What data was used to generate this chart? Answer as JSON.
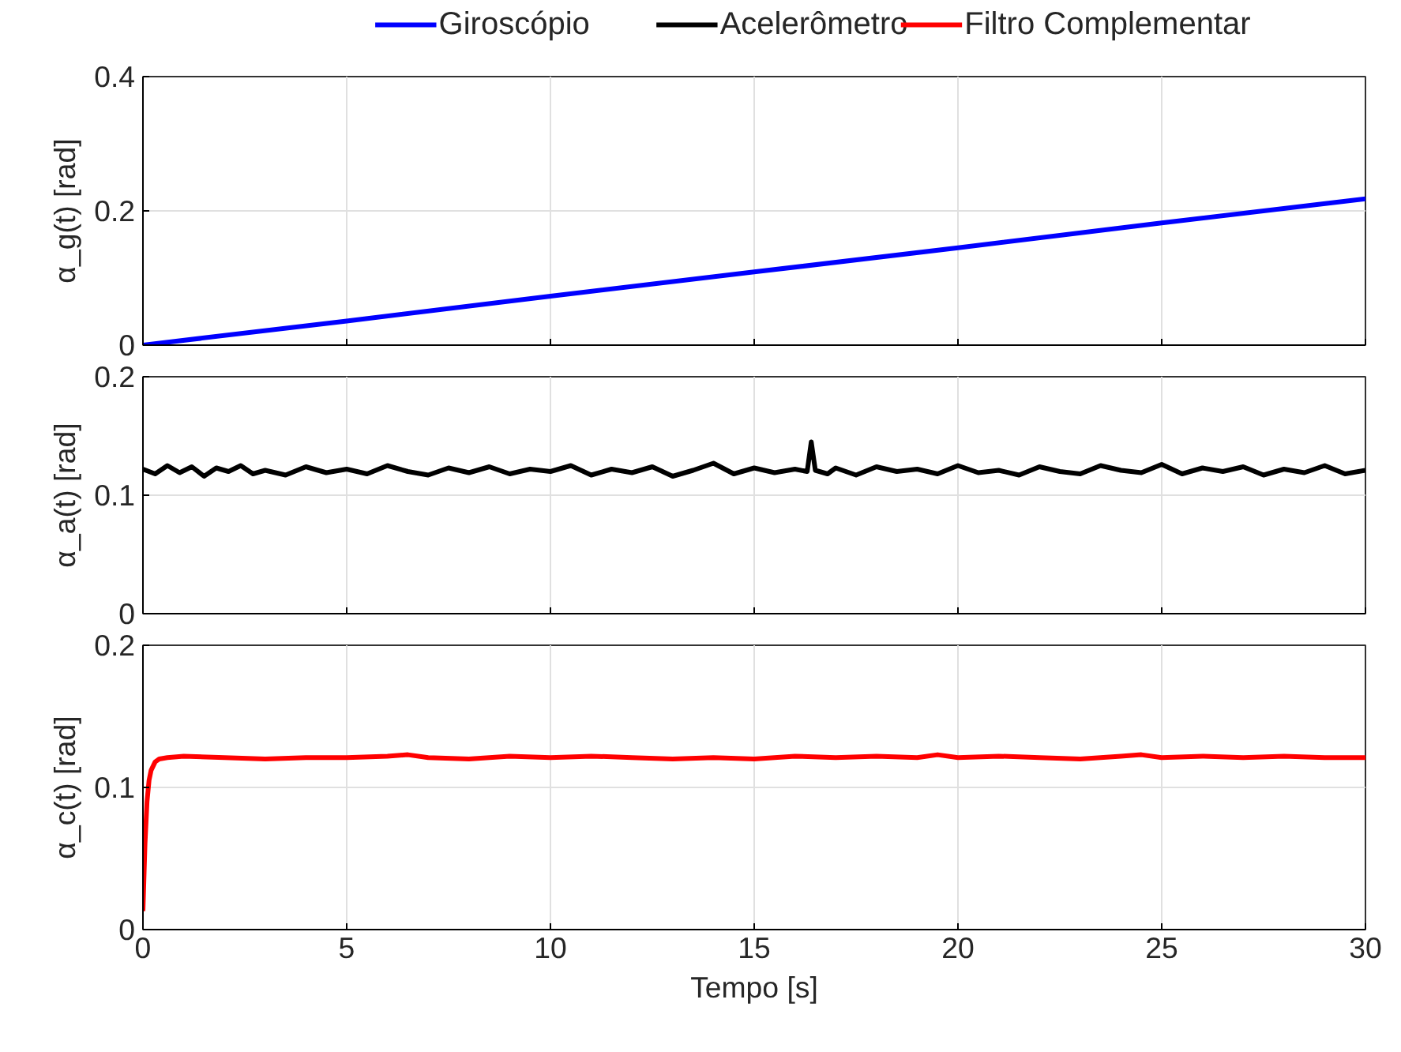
{
  "chart_data": [
    {
      "type": "line",
      "ylabel": "α_g(t) [rad]",
      "xlim": [
        0,
        30
      ],
      "xticks": [
        0,
        5,
        10,
        15,
        20,
        25,
        30
      ],
      "ylim": [
        0,
        0.4
      ],
      "yticks": [
        0,
        0.2,
        0.4
      ],
      "grid": true,
      "legend": "top",
      "tick_labels": "y",
      "series": [
        {
          "name": "Giroscópio",
          "color": "#0000ff",
          "x": [
            0,
            5,
            10,
            15,
            20,
            25,
            30
          ],
          "values": [
            0,
            0.036,
            0.073,
            0.109,
            0.145,
            0.182,
            0.218
          ]
        }
      ]
    },
    {
      "type": "line",
      "ylabel": "α_a(t) [rad]",
      "xlim": [
        0,
        30
      ],
      "xticks": [
        0,
        5,
        10,
        15,
        20,
        25,
        30
      ],
      "ylim": [
        0,
        0.2
      ],
      "yticks": [
        0,
        0.1,
        0.2
      ],
      "grid": true,
      "legend": "top",
      "tick_labels": "y",
      "series": [
        {
          "name": "Acelerômetro",
          "color": "#000000",
          "x": [
            0,
            0.3,
            0.6,
            0.9,
            1.2,
            1.5,
            1.8,
            2.1,
            2.4,
            2.7,
            3.0,
            3.5,
            4.0,
            4.5,
            5.0,
            5.5,
            6.0,
            6.5,
            7.0,
            7.5,
            8.0,
            8.5,
            9.0,
            9.5,
            10.0,
            10.5,
            11.0,
            11.5,
            12.0,
            12.5,
            13.0,
            13.5,
            14.0,
            14.5,
            15.0,
            15.5,
            16.0,
            16.3,
            16.4,
            16.5,
            16.8,
            17.0,
            17.5,
            18.0,
            18.5,
            19.0,
            19.5,
            20.0,
            20.5,
            21.0,
            21.5,
            22.0,
            22.5,
            23.0,
            23.5,
            24.0,
            24.5,
            25.0,
            25.5,
            26.0,
            26.5,
            27.0,
            27.5,
            28.0,
            28.5,
            29.0,
            29.5,
            30.0
          ],
          "values": [
            0.122,
            0.118,
            0.125,
            0.119,
            0.124,
            0.116,
            0.123,
            0.12,
            0.125,
            0.118,
            0.121,
            0.117,
            0.124,
            0.119,
            0.122,
            0.118,
            0.125,
            0.12,
            0.117,
            0.123,
            0.119,
            0.124,
            0.118,
            0.122,
            0.12,
            0.125,
            0.117,
            0.122,
            0.119,
            0.124,
            0.116,
            0.121,
            0.127,
            0.118,
            0.123,
            0.119,
            0.122,
            0.12,
            0.145,
            0.121,
            0.118,
            0.123,
            0.117,
            0.124,
            0.12,
            0.122,
            0.118,
            0.125,
            0.119,
            0.121,
            0.117,
            0.124,
            0.12,
            0.118,
            0.125,
            0.121,
            0.119,
            0.126,
            0.118,
            0.123,
            0.12,
            0.124,
            0.117,
            0.122,
            0.119,
            0.125,
            0.118,
            0.121
          ]
        }
      ]
    },
    {
      "type": "line",
      "ylabel": "α_c(t) [rad]",
      "xlabel": "Tempo [s]",
      "xlim": [
        0,
        30
      ],
      "xticks": [
        0,
        5,
        10,
        15,
        20,
        25,
        30
      ],
      "ylim": [
        0,
        0.2
      ],
      "yticks": [
        0,
        0.1,
        0.2
      ],
      "grid": true,
      "legend": "top",
      "series": [
        {
          "name": "Filtro Complementar",
          "color": "#ff0000",
          "x": [
            0,
            0.05,
            0.1,
            0.15,
            0.2,
            0.3,
            0.4,
            0.6,
            1.0,
            2.0,
            3.0,
            4.0,
            5.0,
            6.0,
            6.5,
            7.0,
            8.0,
            9.0,
            10.0,
            11.0,
            12.0,
            13.0,
            14.0,
            15.0,
            16.0,
            17.0,
            18.0,
            19.0,
            19.5,
            20.0,
            21.0,
            22.0,
            23.0,
            24.0,
            24.5,
            25.0,
            26.0,
            27.0,
            28.0,
            29.0,
            30.0
          ],
          "values": [
            0.013,
            0.06,
            0.09,
            0.105,
            0.112,
            0.118,
            0.12,
            0.121,
            0.122,
            0.121,
            0.12,
            0.121,
            0.121,
            0.122,
            0.123,
            0.121,
            0.12,
            0.122,
            0.121,
            0.122,
            0.121,
            0.12,
            0.121,
            0.12,
            0.122,
            0.121,
            0.122,
            0.121,
            0.123,
            0.121,
            0.122,
            0.121,
            0.12,
            0.122,
            0.123,
            0.121,
            0.122,
            0.121,
            0.122,
            0.121,
            0.121
          ]
        }
      ]
    }
  ]
}
